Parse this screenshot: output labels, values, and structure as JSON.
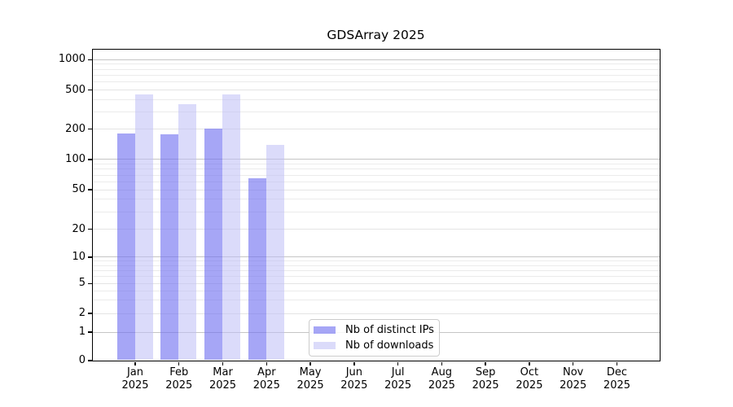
{
  "chart_data": {
    "type": "bar",
    "title": "GDSArray 2025",
    "categories": [
      "Jan 2025",
      "Feb 2025",
      "Mar 2025",
      "Apr 2025",
      "May 2025",
      "Jun 2025",
      "Jul 2025",
      "Aug 2025",
      "Sep 2025",
      "Oct 2025",
      "Nov 2025",
      "Dec 2025"
    ],
    "category_month_labels": [
      "Jan",
      "Feb",
      "Mar",
      "Apr",
      "May",
      "Jun",
      "Jul",
      "Aug",
      "Sep",
      "Oct",
      "Nov",
      "Dec"
    ],
    "category_year_label": "2025",
    "series": [
      {
        "name": "Nb of distinct IPs",
        "color": "rgba(112,112,240,0.62)",
        "color_solid": "#a6a6f9",
        "values": [
          181,
          176,
          200,
          64,
          null,
          null,
          null,
          null,
          null,
          null,
          null,
          null
        ]
      },
      {
        "name": "Nb of downloads",
        "color": "rgba(190,190,246,0.55)",
        "color_solid": "#dbdbfb",
        "values": [
          446,
          357,
          445,
          138,
          null,
          null,
          null,
          null,
          null,
          null,
          null,
          null
        ]
      }
    ],
    "yticks": {
      "values": [
        0,
        1,
        2,
        5,
        10,
        20,
        50,
        100,
        200,
        500,
        1000
      ],
      "labels": [
        "0",
        "1",
        "2",
        "5",
        "10",
        "20",
        "50",
        "100",
        "200",
        "500",
        "1000"
      ]
    },
    "yscale": "symlog",
    "ylim": [
      0,
      1250
    ],
    "grid": "horizontal-log-with-minors",
    "legend_position": "inside-bottom-center",
    "frame_color": "#000000",
    "major_grid_color": "#c5c5c5",
    "minor_grid_color": "#ebebeb"
  }
}
